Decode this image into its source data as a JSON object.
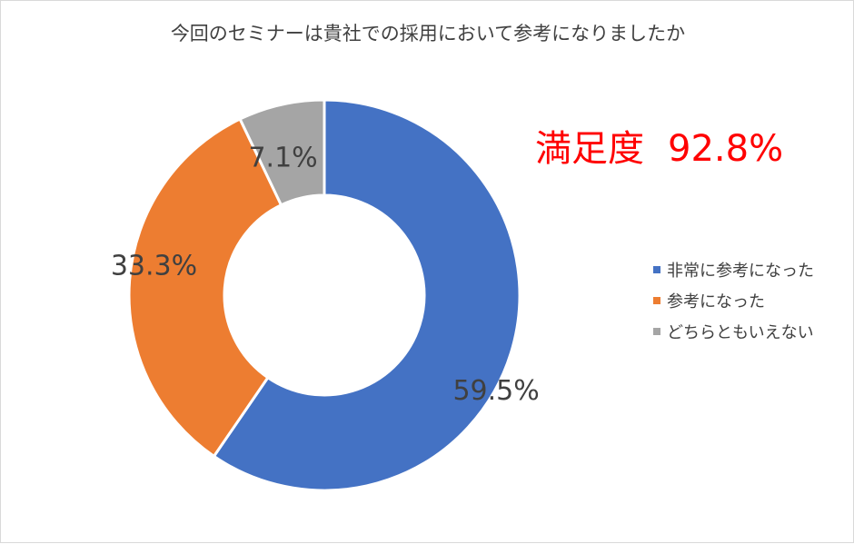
{
  "chart_data": {
    "type": "pie",
    "title": "今回のセミナーは貴社での採用において参考になりましたか",
    "annotation": "満足度",
    "annotation_value": "92.8%",
    "annotation_color": "#ff0000",
    "style": "donut",
    "categories": [
      "非常に参考になった",
      "参考になった",
      "どちらともいえない"
    ],
    "values": [
      59.5,
      33.3,
      7.1
    ],
    "labels": [
      "59.5%",
      "33.3%",
      "7.1%"
    ],
    "colors": [
      "#4472c4",
      "#ed7d31",
      "#a5a5a5"
    ],
    "legend_position": "right"
  }
}
